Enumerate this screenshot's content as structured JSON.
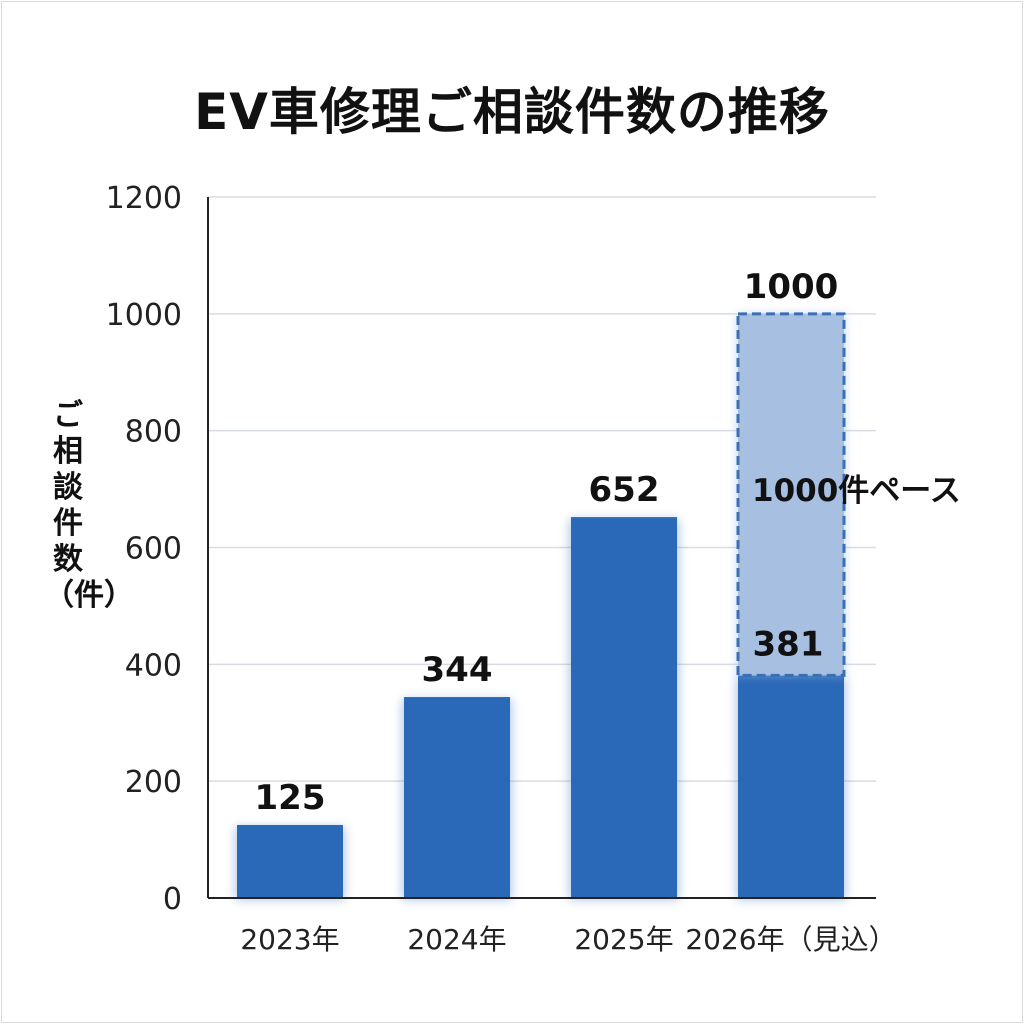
{
  "chart_data": {
    "type": "bar",
    "title": "EV車修理ご相談件数の推移",
    "xlabel": "",
    "ylabel": "ご相談件数（件）",
    "ylim": [
      0,
      1200
    ],
    "yticks": [
      0,
      200,
      400,
      600,
      800,
      1000,
      1200
    ],
    "grid": true,
    "categories": [
      "2023年",
      "2024年",
      "2025年",
      "2026年（見込）"
    ],
    "values": [
      125,
      344,
      652,
      381
    ],
    "data_labels": [
      "125",
      "344",
      "652",
      "381"
    ],
    "projection": {
      "category": "2026年（見込）",
      "from": 381,
      "to": 1000,
      "top_label": "1000",
      "annotation": "1000件ペース",
      "style": "dashed"
    },
    "colors": {
      "bar": "#2a68b8",
      "projection_fill": "#a7c0e2",
      "projection_border": "#3a6fb5",
      "grid": "#d8dce3",
      "axis": "#222222"
    }
  }
}
